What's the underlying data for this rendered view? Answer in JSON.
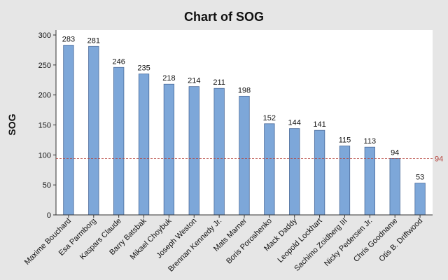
{
  "chart_data": {
    "type": "bar",
    "title": "Chart of SOG",
    "xlabel": "",
    "ylabel": "SOG",
    "categories": [
      "Maxime Bouchard",
      "Esa Parmborg",
      "Kaspars Claude",
      "Barry Batsbak",
      "Mikael Choybuk",
      "Joseph Weston",
      "Brennan Kennedy Jr.",
      "Mats Marner",
      "Boris Poroshenko",
      "Mack Daddy",
      "Leopold Lockhart",
      "Sachimo Zoidberg III",
      "Nicky Pedersen Jr.",
      "Chris Goodname",
      "Otis B. Driftwood"
    ],
    "values": [
      283,
      281,
      246,
      235,
      218,
      214,
      211,
      198,
      152,
      144,
      141,
      115,
      113,
      94,
      53
    ],
    "ylim": [
      0,
      300
    ],
    "yticks": [
      0,
      50,
      100,
      150,
      200,
      250,
      300
    ],
    "reference_line": {
      "value": 94,
      "label": "94",
      "color": "#b5413a",
      "style": "dashed"
    },
    "bar_color": "#7da7d9",
    "bar_edge_color": "#4a6a9a",
    "plot_background": "#ffffff",
    "figure_background": "#e6e6e6",
    "grid": false,
    "legend": null
  }
}
